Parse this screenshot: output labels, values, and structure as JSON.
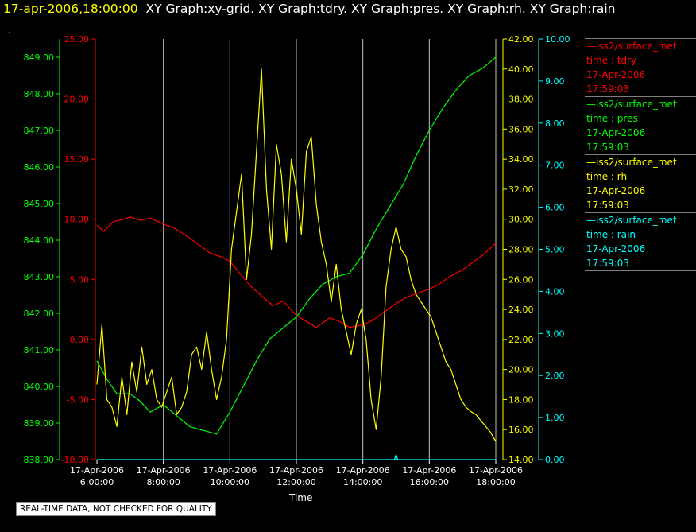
{
  "header": {
    "timestamp": "17-apr-2006,18:00:00",
    "titles": "XY Graph:xy-grid.  XY Graph:tdry.  XY Graph:pres.  XY Graph:rh.  XY Graph:rain"
  },
  "dot": ".",
  "notice": "REAL-TIME DATA, NOT CHECKED FOR QUALITY",
  "colors": {
    "tdry": "#ff0000",
    "pres": "#00ff00",
    "rh": "#ffff00",
    "rain": "#00ffff",
    "grid": "#c0c0c0",
    "background": "#000000"
  },
  "legend": [
    {
      "name": "iss2/surface_met",
      "var": "time : tdry",
      "date": "17-Apr-2006",
      "time": "17:59:03",
      "color": "#ff0000"
    },
    {
      "name": "iss2/surface_met",
      "var": "time : pres",
      "date": "17-Apr-2006",
      "time": "17:59:03",
      "color": "#00ff00"
    },
    {
      "name": "iss2/surface_met",
      "var": "time : rh",
      "date": "17-Apr-2006",
      "time": "17:59:03",
      "color": "#ffff00"
    },
    {
      "name": "iss2/surface_met",
      "var": "time : rain",
      "date": "17-Apr-2006",
      "time": "17:59:03",
      "color": "#00ffff"
    }
  ],
  "chart_data": {
    "type": "line",
    "title": "",
    "xlabel": "Time",
    "xlim": [
      6.0,
      18.0
    ],
    "x_ticks": [
      6,
      8,
      10,
      12,
      14,
      16,
      18
    ],
    "x_tick_labels": [
      [
        "17-Apr-2006",
        "6:00:00"
      ],
      [
        "17-Apr-2006",
        "8:00:00"
      ],
      [
        "17-Apr-2006",
        "10:00:00"
      ],
      [
        "17-Apr-2006",
        "12:00:00"
      ],
      [
        "17-Apr-2006",
        "14:00:00"
      ],
      [
        "17-Apr-2006",
        "16:00:00"
      ],
      [
        "17-Apr-2006",
        "18:00:00"
      ]
    ],
    "grid": true,
    "axes": {
      "tdry": {
        "range": [
          -10,
          25
        ],
        "ticks": [
          "-10.00",
          "-5.00",
          "0.00",
          "5.00",
          "10.00",
          "15.00",
          "20.00",
          "25.00"
        ]
      },
      "pres": {
        "range": [
          838,
          849.5
        ],
        "ticks": [
          "838.00",
          "839.00",
          "840.00",
          "841.00",
          "842.00",
          "843.00",
          "844.00",
          "845.00",
          "846.00",
          "847.00",
          "848.00",
          "849.00"
        ]
      },
      "rh": {
        "range": [
          14,
          42
        ],
        "ticks": [
          "14.00",
          "16.00",
          "18.00",
          "20.00",
          "22.00",
          "24.00",
          "26.00",
          "28.00",
          "30.00",
          "32.00",
          "34.00",
          "36.00",
          "38.00",
          "40.00",
          "42.00"
        ]
      },
      "rain": {
        "range": [
          0,
          10
        ],
        "ticks": [
          "0.00",
          "1.00",
          "2.00",
          "3.00",
          "4.00",
          "5.00",
          "6.00",
          "7.00",
          "8.00",
          "9.00",
          "10.00"
        ]
      }
    },
    "series": [
      {
        "key": "tdry",
        "x": [
          6.0,
          6.2,
          6.5,
          6.8,
          7.0,
          7.3,
          7.6,
          8.0,
          8.3,
          8.6,
          9.0,
          9.4,
          9.8,
          10.0,
          10.3,
          10.6,
          11.0,
          11.3,
          11.6,
          12.0,
          12.3,
          12.6,
          13.0,
          13.3,
          13.6,
          14.0,
          14.3,
          14.6,
          15.0,
          15.3,
          15.6,
          16.0,
          16.3,
          16.6,
          17.0,
          17.3,
          17.6,
          18.0
        ],
        "values": [
          9.5,
          9.0,
          9.8,
          10.0,
          10.2,
          9.9,
          10.1,
          9.6,
          9.3,
          8.8,
          8.0,
          7.2,
          6.8,
          6.5,
          5.5,
          4.5,
          3.5,
          2.8,
          3.2,
          2.0,
          1.5,
          1.0,
          1.8,
          1.5,
          1.0,
          1.2,
          1.6,
          2.2,
          3.0,
          3.5,
          3.8,
          4.2,
          4.6,
          5.2,
          5.8,
          6.4,
          7.0,
          8.0
        ]
      },
      {
        "key": "pres",
        "x": [
          6.0,
          6.3,
          6.6,
          7.0,
          7.3,
          7.6,
          8.0,
          8.4,
          8.8,
          9.2,
          9.6,
          10.0,
          10.4,
          10.8,
          11.2,
          11.6,
          12.0,
          12.4,
          12.8,
          13.2,
          13.6,
          14.0,
          14.4,
          14.8,
          15.2,
          15.6,
          16.0,
          16.4,
          16.8,
          17.2,
          17.6,
          18.0
        ],
        "values": [
          840.7,
          840.2,
          839.8,
          839.8,
          839.6,
          839.3,
          839.5,
          839.2,
          838.9,
          838.8,
          838.7,
          839.3,
          840.0,
          840.7,
          841.3,
          841.6,
          841.9,
          842.4,
          842.8,
          843.0,
          843.1,
          843.6,
          844.3,
          844.9,
          845.5,
          846.3,
          847.0,
          847.6,
          848.1,
          848.5,
          848.7,
          849.0
        ]
      },
      {
        "key": "rh",
        "x": [
          6.0,
          6.15,
          6.3,
          6.45,
          6.6,
          6.75,
          6.9,
          7.05,
          7.2,
          7.35,
          7.5,
          7.65,
          7.8,
          7.95,
          8.1,
          8.25,
          8.4,
          8.55,
          8.7,
          8.85,
          9.0,
          9.15,
          9.3,
          9.45,
          9.6,
          9.75,
          9.9,
          10.05,
          10.2,
          10.35,
          10.5,
          10.65,
          10.8,
          10.95,
          11.1,
          11.25,
          11.4,
          11.55,
          11.7,
          11.85,
          12.0,
          12.15,
          12.3,
          12.45,
          12.6,
          12.75,
          12.9,
          13.05,
          13.2,
          13.35,
          13.5,
          13.65,
          13.8,
          13.95,
          14.1,
          14.25,
          14.4,
          14.55,
          14.7,
          14.85,
          15.0,
          15.15,
          15.3,
          15.45,
          15.6,
          15.75,
          15.9,
          16.05,
          16.2,
          16.35,
          16.5,
          16.65,
          16.8,
          16.95,
          17.1,
          17.25,
          17.4,
          17.55,
          17.7,
          17.85,
          18.0
        ],
        "values": [
          19.0,
          23.0,
          18.0,
          17.5,
          16.2,
          19.5,
          17.0,
          20.5,
          18.5,
          21.5,
          19.0,
          20.0,
          18.0,
          17.5,
          18.5,
          19.5,
          17.0,
          17.5,
          18.5,
          21.0,
          21.5,
          20.0,
          22.5,
          20.0,
          18.0,
          19.5,
          22.0,
          28.0,
          30.5,
          33.0,
          26.0,
          29.0,
          34.5,
          40.0,
          32.0,
          28.0,
          35.0,
          33.0,
          28.5,
          34.0,
          32.0,
          29.0,
          34.5,
          35.5,
          31.0,
          28.5,
          27.0,
          24.5,
          27.0,
          24.0,
          22.5,
          21.0,
          23.0,
          24.0,
          22.0,
          18.0,
          16.0,
          19.5,
          25.5,
          28.0,
          29.5,
          28.0,
          27.5,
          26.0,
          25.0,
          24.5,
          24.0,
          23.5,
          22.5,
          21.5,
          20.5,
          20.0,
          19.0,
          18.0,
          17.5,
          17.2,
          17.0,
          16.6,
          16.2,
          15.8,
          15.2
        ]
      },
      {
        "key": "rain",
        "x": [
          6.0,
          14.95,
          15.0,
          15.05,
          18.0
        ],
        "values": [
          0.0,
          0.0,
          0.12,
          0.0,
          0.0
        ]
      }
    ]
  }
}
